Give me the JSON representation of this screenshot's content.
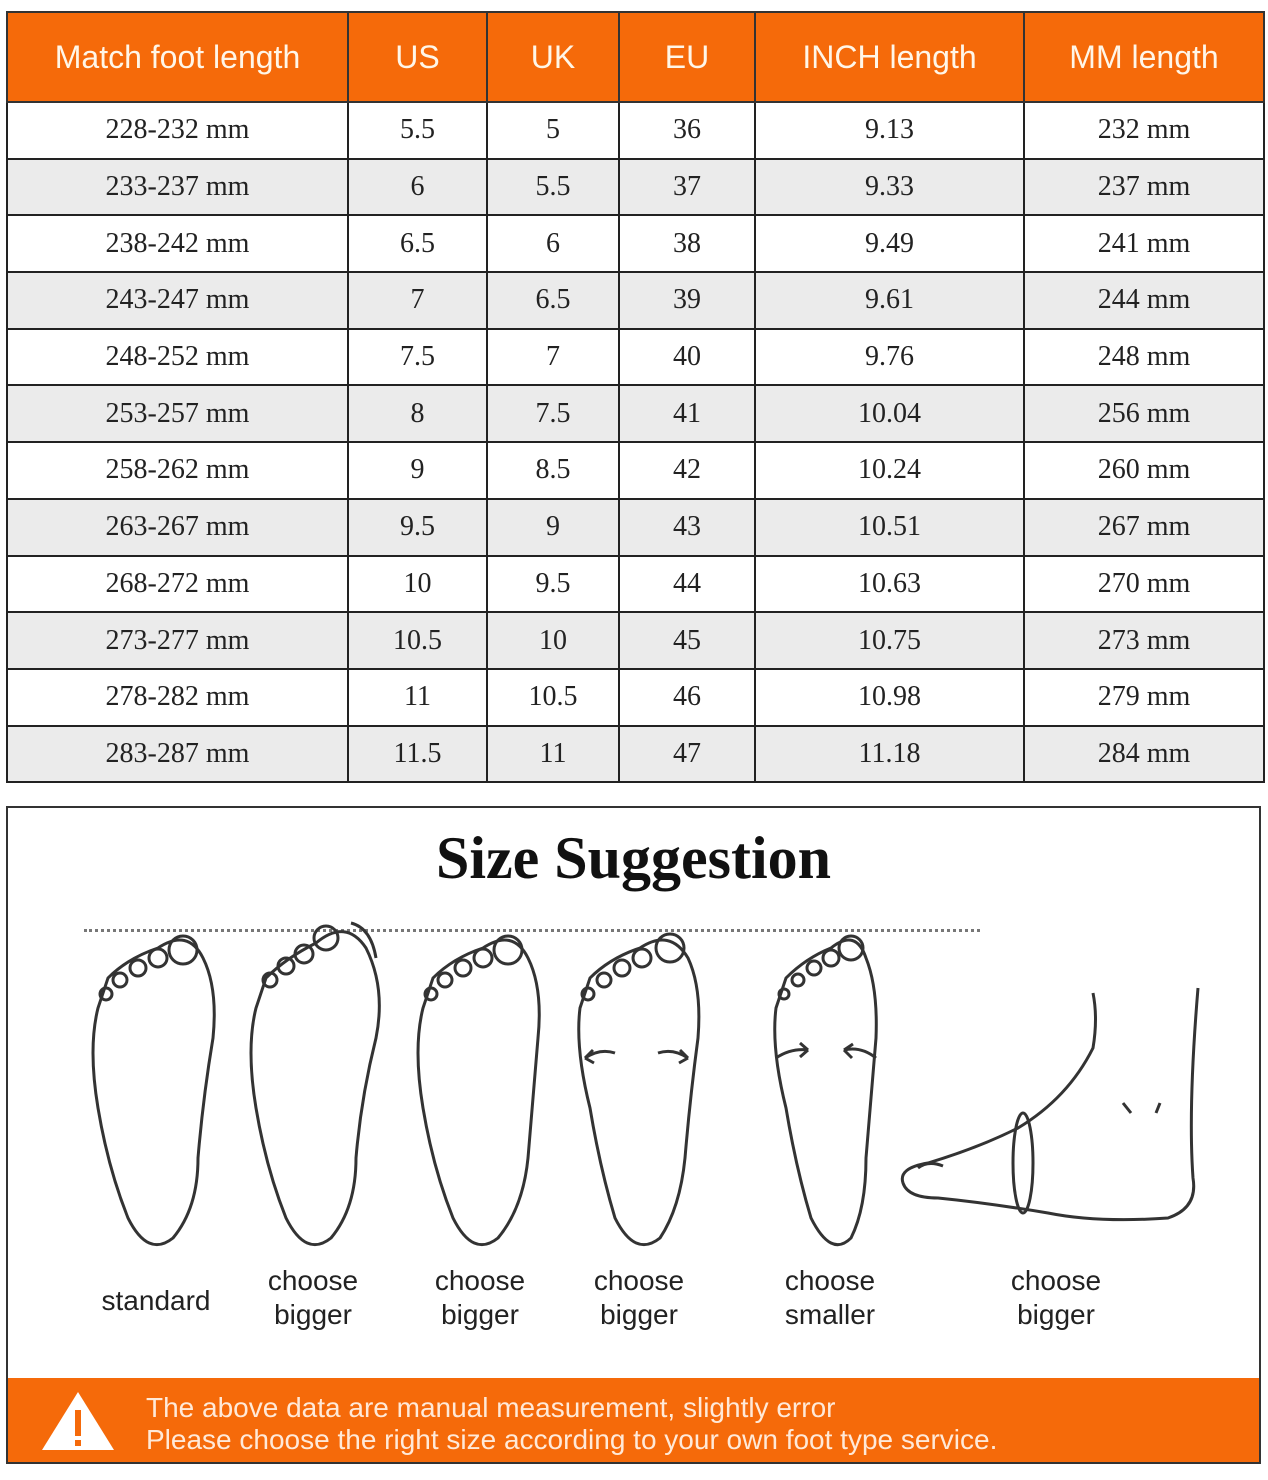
{
  "table": {
    "headers": [
      "Match foot length",
      "US",
      "UK",
      "EU",
      "INCH length",
      "MM length"
    ],
    "rows": [
      [
        "228-232 mm",
        "5.5",
        "5",
        "36",
        "9.13",
        "232 mm"
      ],
      [
        "233-237 mm",
        "6",
        "5.5",
        "37",
        "9.33",
        "237 mm"
      ],
      [
        "238-242 mm",
        "6.5",
        "6",
        "38",
        "9.49",
        "241 mm"
      ],
      [
        "243-247 mm",
        "7",
        "6.5",
        "39",
        "9.61",
        "244 mm"
      ],
      [
        "248-252 mm",
        "7.5",
        "7",
        "40",
        "9.76",
        "248 mm"
      ],
      [
        "253-257 mm",
        "8",
        "7.5",
        "41",
        "10.04",
        "256 mm"
      ],
      [
        "258-262 mm",
        "9",
        "8.5",
        "42",
        "10.24",
        "260 mm"
      ],
      [
        "263-267 mm",
        "9.5",
        "9",
        "43",
        "10.51",
        "267 mm"
      ],
      [
        "268-272 mm",
        "10",
        "9.5",
        "44",
        "10.63",
        "270 mm"
      ],
      [
        "273-277 mm",
        "10.5",
        "10",
        "45",
        "10.75",
        "273 mm"
      ],
      [
        "278-282 mm",
        "11",
        "10.5",
        "46",
        "10.98",
        "279 mm"
      ],
      [
        "283-287 mm",
        "11.5",
        "11",
        "47",
        "11.18",
        "284 mm"
      ]
    ]
  },
  "suggestion": {
    "title": "Size Suggestion",
    "labels": [
      {
        "l1": "standard",
        "l2": ""
      },
      {
        "l1": "choose",
        "l2": "bigger"
      },
      {
        "l1": "choose",
        "l2": "bigger"
      },
      {
        "l1": "choose",
        "l2": "bigger"
      },
      {
        "l1": "choose",
        "l2": "smaller"
      },
      {
        "l1": "choose",
        "l2": "bigger"
      }
    ]
  },
  "notice": {
    "icon": "warning-triangle-icon",
    "line1": "The above data are manual measurement, slightly error",
    "line2": "Please choose the right size according to your own foot type service."
  },
  "colors": {
    "accent": "#f56a0a",
    "row_alt": "#ebebeb"
  }
}
